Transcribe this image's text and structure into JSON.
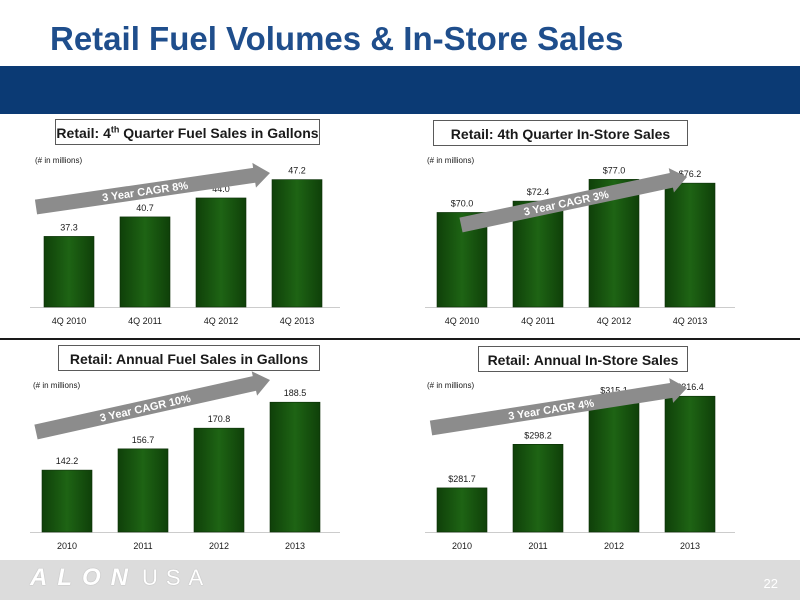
{
  "page": {
    "title": "Retail Fuel Volumes & In-Store Sales",
    "page_number": "22",
    "logo": {
      "text_a": "ALON",
      "text_b": "USA"
    }
  },
  "colors": {
    "bar": "#1e6414",
    "bar_dark": "#0f4009",
    "arrow": "#8c8c8c",
    "title": "#1f4e8c",
    "band": "#0b3a74"
  },
  "chart_data": [
    {
      "type": "bar",
      "title_main": "Retail: 4",
      "title_sup": "th",
      "title_rest": " Quarter Fuel Sales in Gallons",
      "units": "(# in millions)",
      "categories": [
        "4Q 2010",
        "4Q 2011",
        "4Q 2012",
        "4Q 2013"
      ],
      "values": [
        37.3,
        40.7,
        44.0,
        47.2
      ],
      "labels": [
        "37.3",
        "40.7",
        "44.0",
        "47.2"
      ],
      "ylim": [
        25,
        48
      ],
      "annotation": "3 Year CAGR 8%"
    },
    {
      "type": "bar",
      "title_main": "Retail: 4th Quarter In-Store Sales",
      "title_sup": "",
      "title_rest": "",
      "units": "(# in millions)",
      "categories": [
        "4Q 2010",
        "4Q 2011",
        "4Q 2012",
        "4Q 2013"
      ],
      "values": [
        70.0,
        72.4,
        77.0,
        76.2
      ],
      "labels": [
        "$70.0",
        "$72.4",
        "$77.0",
        "$76.2"
      ],
      "ylim": [
        50,
        77.5
      ],
      "annotation": "3 Year CAGR 3%"
    },
    {
      "type": "bar",
      "title_main": "Retail: Annual Fuel Sales in Gallons",
      "title_sup": "",
      "title_rest": "",
      "units": "(# in millions)",
      "categories": [
        "2010",
        "2011",
        "2012",
        "2013"
      ],
      "values": [
        142.2,
        156.7,
        170.8,
        188.5
      ],
      "labels": [
        "142.2",
        "156.7",
        "170.8",
        "188.5"
      ],
      "ylim": [
        100,
        190
      ],
      "annotation": "3 Year CAGR 10%"
    },
    {
      "type": "bar",
      "title_main": "Retail: Annual In-Store Sales",
      "title_sup": "",
      "title_rest": "",
      "units": "(# in millions)",
      "categories": [
        "2010",
        "2011",
        "2012",
        "2013"
      ],
      "values": [
        281.7,
        298.2,
        315.1,
        316.4
      ],
      "labels": [
        "$281.7",
        "$298.2",
        "$315.1",
        "$316.4"
      ],
      "ylim": [
        265,
        318
      ],
      "annotation": "3 Year CAGR 4%"
    }
  ]
}
